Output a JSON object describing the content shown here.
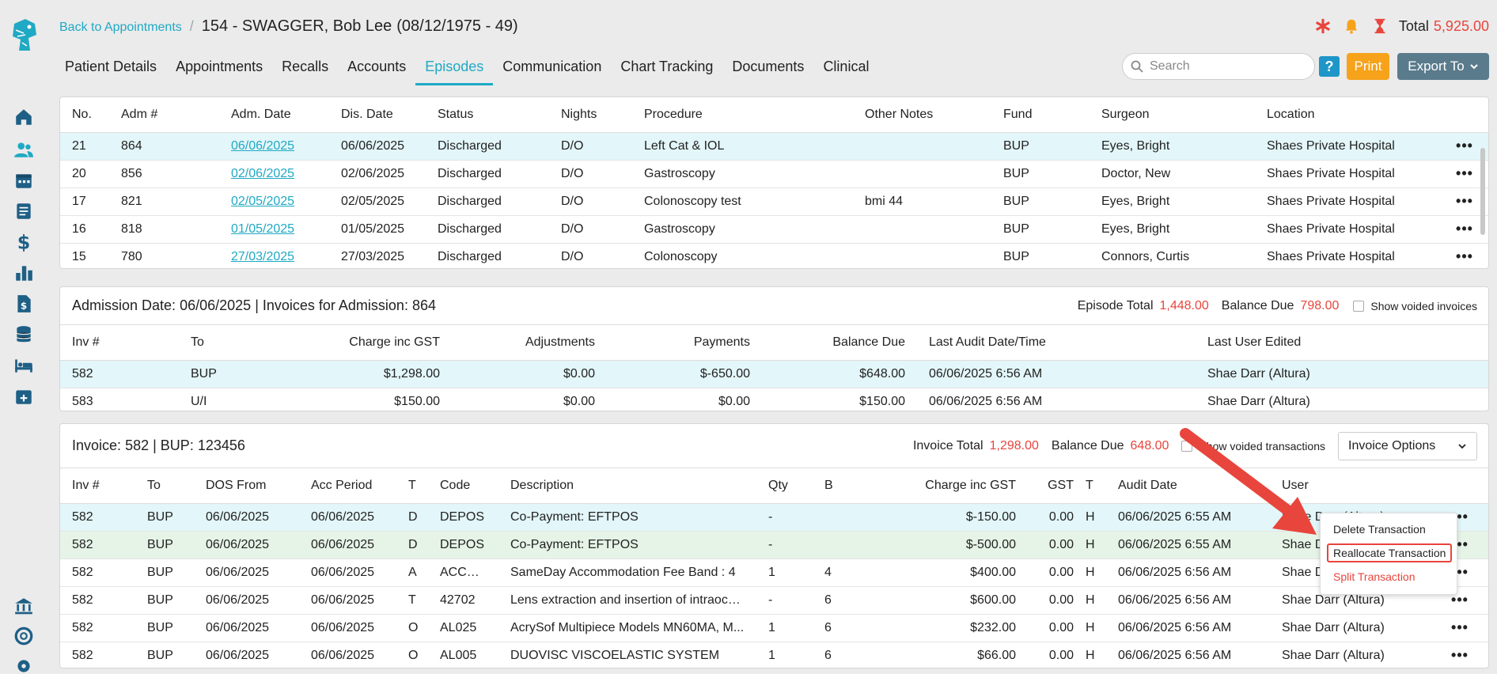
{
  "header": {
    "back_link": "Back to Appointments",
    "separator": "/",
    "patient_name": "154 - SWAGGER, Bob Lee",
    "patient_dob": "(08/12/1975 - 49)",
    "total_label": "Total",
    "total_value": "5,925.00"
  },
  "tabs": [
    "Patient Details",
    "Appointments",
    "Recalls",
    "Accounts",
    "Episodes",
    "Communication",
    "Chart Tracking",
    "Documents",
    "Clinical"
  ],
  "toolbar": {
    "search_placeholder": "Search",
    "help_label": "?",
    "print_label": "Print",
    "export_label": "Export To"
  },
  "episodes": {
    "columns": [
      "No.",
      "Adm #",
      "Adm. Date",
      "Dis. Date",
      "Status",
      "Nights",
      "Procedure",
      "Other Notes",
      "Fund",
      "Surgeon",
      "Location"
    ],
    "rows": [
      [
        "21",
        "864",
        "06/06/2025",
        "06/06/2025",
        "Discharged",
        "D/O",
        "Left Cat & IOL",
        "",
        "BUP",
        "Eyes, Bright",
        "Shaes Private Hospital"
      ],
      [
        "20",
        "856",
        "02/06/2025",
        "02/06/2025",
        "Discharged",
        "D/O",
        "Gastroscopy",
        "",
        "BUP",
        "Doctor, New",
        "Shaes Private Hospital"
      ],
      [
        "17",
        "821",
        "02/05/2025",
        "02/05/2025",
        "Discharged",
        "D/O",
        "Colonoscopy test",
        "bmi 44",
        "BUP",
        "Eyes, Bright",
        "Shaes Private Hospital"
      ],
      [
        "16",
        "818",
        "01/05/2025",
        "01/05/2025",
        "Discharged",
        "D/O",
        "Gastroscopy",
        "",
        "BUP",
        "Eyes, Bright",
        "Shaes Private Hospital"
      ],
      [
        "15",
        "780",
        "27/03/2025",
        "27/03/2025",
        "Discharged",
        "D/O",
        "Colonoscopy",
        "",
        "BUP",
        "Connors, Curtis",
        "Shaes Private Hospital"
      ]
    ],
    "row_menu": "•••"
  },
  "admission": {
    "title_label1": "Admission Date:",
    "title_value1": "06/06/2025",
    "title_label2": "| Invoices for Admission:",
    "title_value2": "864",
    "episode_total_label": "Episode Total",
    "episode_total_value": "1,448.00",
    "balance_due_label": "Balance Due",
    "balance_due_value": "798.00",
    "show_voided_label": "Show voided invoices",
    "columns": [
      "Inv #",
      "To",
      "Charge inc GST",
      "Adjustments",
      "Payments",
      "Balance Due",
      "Last Audit Date/Time",
      "Last User Edited"
    ],
    "rows": [
      [
        "582",
        "BUP",
        "$1,298.00",
        "$0.00",
        "$-650.00",
        "$648.00",
        "06/06/2025 6:56 AM",
        "Shae Darr (Altura)"
      ],
      [
        "583",
        "U/I",
        "$150.00",
        "$0.00",
        "$0.00",
        "$150.00",
        "06/06/2025 6:56 AM",
        "Shae Darr (Altura)"
      ]
    ]
  },
  "invoice": {
    "title_label1": "Invoice:",
    "title_value1": "582",
    "title_label2": "| BUP:",
    "title_value2": "123456",
    "invoice_total_label": "Invoice Total",
    "invoice_total_value": "1,298.00",
    "balance_due_label": "Balance Due",
    "balance_due_value": "648.00",
    "show_voided_label": "Show voided transactions",
    "options_label": "Invoice Options",
    "columns": [
      "Inv #",
      "To",
      "DOS From",
      "Acc Period",
      "T",
      "Code",
      "Description",
      "Qty",
      "B",
      "Charge inc GST",
      "GST",
      "T",
      "Audit Date",
      "User"
    ],
    "rows": [
      [
        "582",
        "BUP",
        "06/06/2025",
        "06/06/2025",
        "D",
        "DEPOS",
        "Co-Payment: EFTPOS",
        "-",
        "",
        "$-150.00",
        "0.00",
        "H",
        "06/06/2025 6:55 AM",
        "Shae Darr (Altura)"
      ],
      [
        "582",
        "BUP",
        "06/06/2025",
        "06/06/2025",
        "D",
        "DEPOS",
        "Co-Payment: EFTPOS",
        "-",
        "",
        "$-500.00",
        "0.00",
        "H",
        "06/06/2025 6:55 AM",
        "Shae Darr (Altura)"
      ],
      [
        "582",
        "BUP",
        "06/06/2025",
        "06/06/2025",
        "A",
        "ACCOM",
        "SameDay Accommodation Fee Band : 4",
        "1",
        "4",
        "$400.00",
        "0.00",
        "H",
        "06/06/2025 6:56 AM",
        "Shae Darr (Altura)"
      ],
      [
        "582",
        "BUP",
        "06/06/2025",
        "06/06/2025",
        "T",
        "42702",
        "Lens extraction and insertion of intraocul...",
        "-",
        "6",
        "$600.00",
        "0.00",
        "H",
        "06/06/2025 6:56 AM",
        "Shae Darr (Altura)"
      ],
      [
        "582",
        "BUP",
        "06/06/2025",
        "06/06/2025",
        "O",
        "AL025",
        "AcrySof Multipiece Models MN60MA, M...",
        "1",
        "6",
        "$232.00",
        "0.00",
        "H",
        "06/06/2025 6:56 AM",
        "Shae Darr (Altura)"
      ],
      [
        "582",
        "BUP",
        "06/06/2025",
        "06/06/2025",
        "O",
        "AL005",
        "DUOVISC VISCOELASTIC SYSTEM",
        "1",
        "6",
        "$66.00",
        "0.00",
        "H",
        "06/06/2025 6:56 AM",
        "Shae Darr (Altura)"
      ]
    ]
  },
  "context_menu": {
    "items": [
      "Delete Transaction",
      "Reallocate Transaction",
      "Split Transaction"
    ]
  },
  "colors": {
    "accent": "#1fa9c4",
    "danger": "#e8453c",
    "print": "#f7a21b",
    "export": "#5a7b8c",
    "selected_row": "#e3f6f9",
    "green_row": "#e6f4e7"
  }
}
